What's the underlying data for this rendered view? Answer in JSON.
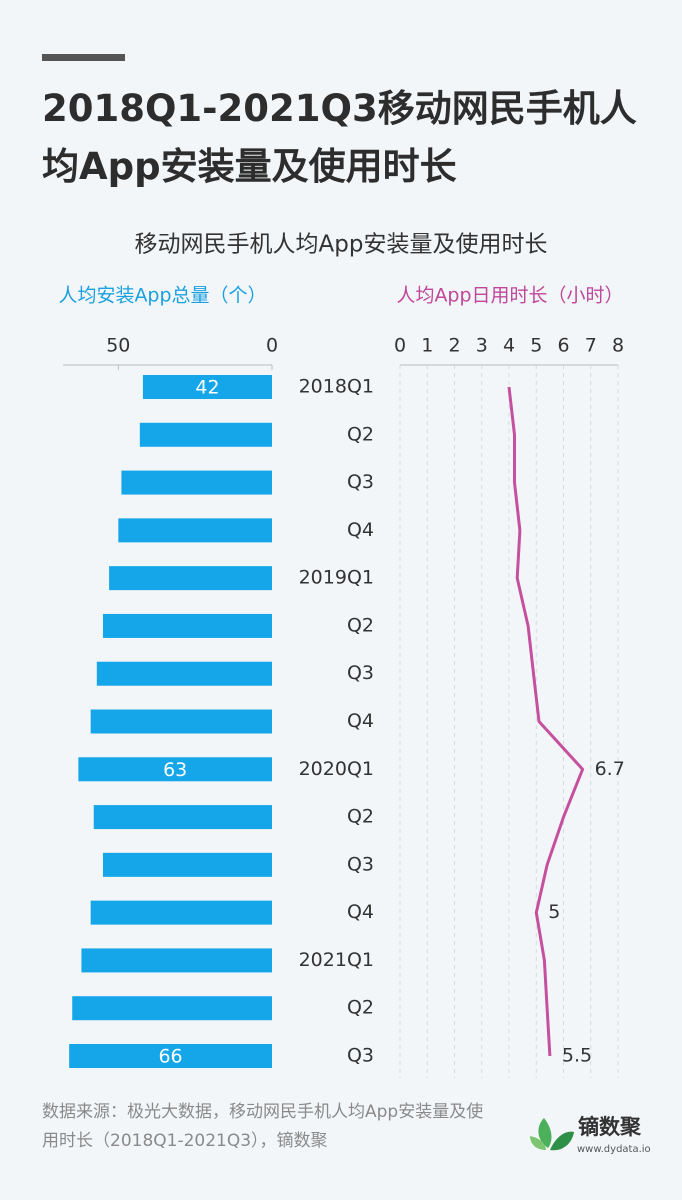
{
  "header": {
    "title": "2018Q1-2021Q3移动网民手机人均App安装量及使用时长"
  },
  "chart_title": "移动网民手机人均App安装量及使用时长",
  "chart_data": [
    {
      "type": "bar",
      "orientation": "horizontal",
      "x_label": "人均安装App总量（个）",
      "categories": [
        "2018Q1",
        "Q2",
        "Q3",
        "Q4",
        "2019Q1",
        "Q2",
        "Q3",
        "Q4",
        "2020Q1",
        "Q2",
        "Q3",
        "Q4",
        "2021Q1",
        "Q2",
        "Q3"
      ],
      "values": [
        42,
        43,
        49,
        50,
        53,
        55,
        57,
        59,
        63,
        58,
        55,
        59,
        62,
        65,
        66
      ],
      "value_labels": [
        "42",
        null,
        null,
        null,
        null,
        null,
        null,
        null,
        "63",
        null,
        null,
        null,
        null,
        null,
        "66"
      ],
      "color": "#14a6e8",
      "xlim": [
        68,
        0
      ],
      "xticks": [
        50,
        0
      ]
    },
    {
      "type": "line",
      "orientation": "vertical",
      "x_label": "人均App日用时长（小时）",
      "values": [
        4.0,
        4.2,
        4.2,
        4.4,
        4.3,
        4.7,
        4.9,
        5.1,
        6.7,
        6.0,
        5.4,
        5.0,
        5.3,
        5.4,
        5.5
      ],
      "value_labels": [
        null,
        null,
        null,
        null,
        null,
        null,
        null,
        null,
        "6.7",
        null,
        null,
        "5",
        null,
        null,
        "5.5"
      ],
      "color": "#c4509e",
      "xlim": [
        0,
        8
      ],
      "xticks": [
        0,
        1,
        2,
        3,
        4,
        5,
        6,
        7,
        8
      ],
      "grid": true
    }
  ],
  "source": "数据来源：极光大数据，移动网民手机人均App安装量及使用时长（2018Q1-2021Q3），镝数聚",
  "logo": {
    "name": "镝数聚",
    "url": "www.dydata.io"
  }
}
